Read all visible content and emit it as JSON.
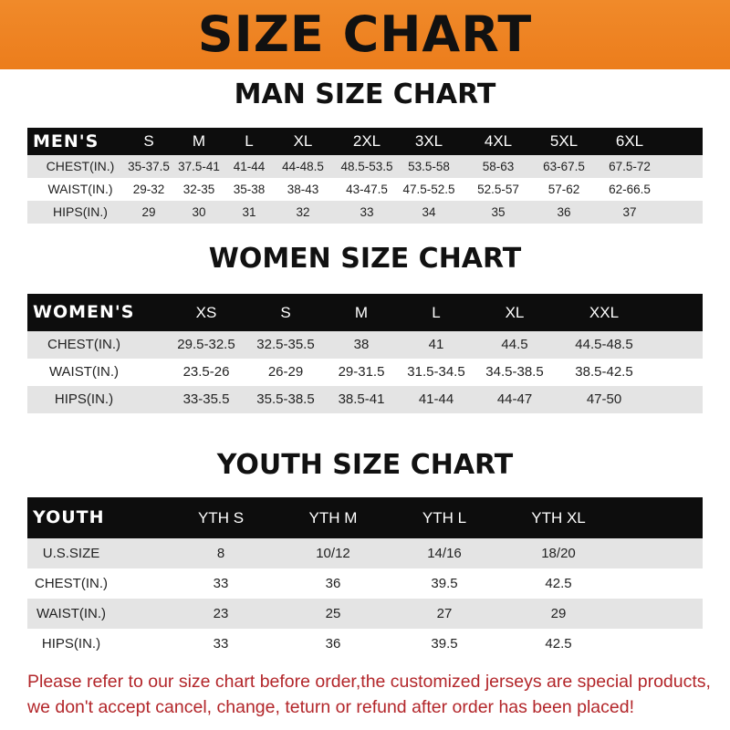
{
  "banner_title": "SIZE CHART",
  "men": {
    "title": "MAN SIZE CHART",
    "header": [
      "MEN'S",
      "S",
      "M",
      "L",
      "XL",
      "2XL",
      "3XL",
      "4XL",
      "5XL",
      "6XL"
    ],
    "rows": [
      [
        "CHEST(IN.)",
        "35-37.5",
        "37.5-41",
        "41-44",
        "44-48.5",
        "48.5-53.5",
        "53.5-58",
        "58-63",
        "63-67.5",
        "67.5-72"
      ],
      [
        "WAIST(IN.)",
        "29-32",
        "32-35",
        "35-38",
        "38-43",
        "43-47.5",
        "47.5-52.5",
        "52.5-57",
        "57-62",
        "62-66.5"
      ],
      [
        "HIPS(IN.)",
        "29",
        "30",
        "31",
        "32",
        "33",
        "34",
        "35",
        "36",
        "37"
      ]
    ]
  },
  "women": {
    "title": "WOMEN SIZE CHART",
    "header": [
      "WOMEN'S",
      "XS",
      "S",
      "M",
      "L",
      "XL",
      "XXL"
    ],
    "rows": [
      [
        "CHEST(IN.)",
        "29.5-32.5",
        "32.5-35.5",
        "38",
        "41",
        "44.5",
        "44.5-48.5"
      ],
      [
        "WAIST(IN.)",
        "23.5-26",
        "26-29",
        "29-31.5",
        "31.5-34.5",
        "34.5-38.5",
        "38.5-42.5"
      ],
      [
        "HIPS(IN.)",
        "33-35.5",
        "35.5-38.5",
        "38.5-41",
        "41-44",
        "44-47",
        "47-50"
      ]
    ]
  },
  "youth": {
    "title": "YOUTH SIZE CHART",
    "header": [
      "YOUTH",
      "YTH S",
      "YTH M",
      "YTH L",
      "YTH XL"
    ],
    "rows": [
      [
        "U.S.SIZE",
        "8",
        "10/12",
        "14/16",
        "18/20"
      ],
      [
        "CHEST(IN.)",
        "33",
        "36",
        "39.5",
        "42.5"
      ],
      [
        "WAIST(IN.)",
        "23",
        "25",
        "27",
        "29"
      ],
      [
        "HIPS(IN.)",
        "33",
        "36",
        "39.5",
        "42.5"
      ]
    ]
  },
  "note": "Please refer to our size chart before order,the customized jerseys are special products, we don't accept cancel, change, teturn or refund after order has been placed!",
  "colors": {
    "banner": "#ec7d1c",
    "header_row": "#0d0d0d",
    "note": "#b3262a"
  }
}
